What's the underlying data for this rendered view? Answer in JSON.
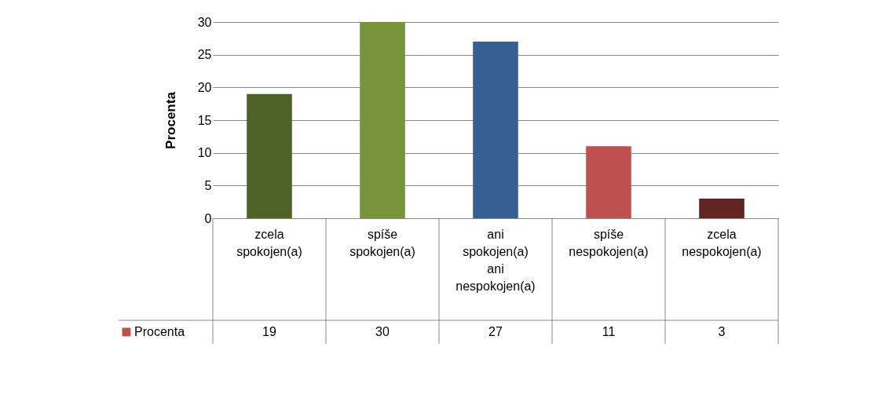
{
  "chart_data": {
    "type": "bar",
    "ylabel": "Procenta",
    "categories": [
      "zcela spokojen(a)",
      "spíše spokojen(a)",
      "ani spokojen(a) ani nespokojen(a)",
      "spíše nespokojen(a)",
      "zcela nespokojen(a)"
    ],
    "series": [
      {
        "name": "Procenta",
        "values": [
          19,
          30,
          27,
          11,
          3
        ]
      }
    ],
    "colors": [
      "#4f6228",
      "#77933c",
      "#376092",
      "#c0504d",
      "#632523"
    ],
    "ylim": [
      0,
      30
    ],
    "yticks": [
      0,
      5,
      10,
      15,
      20,
      25,
      30
    ],
    "grid": "y",
    "data_labels": true,
    "legend": "bottom left"
  }
}
